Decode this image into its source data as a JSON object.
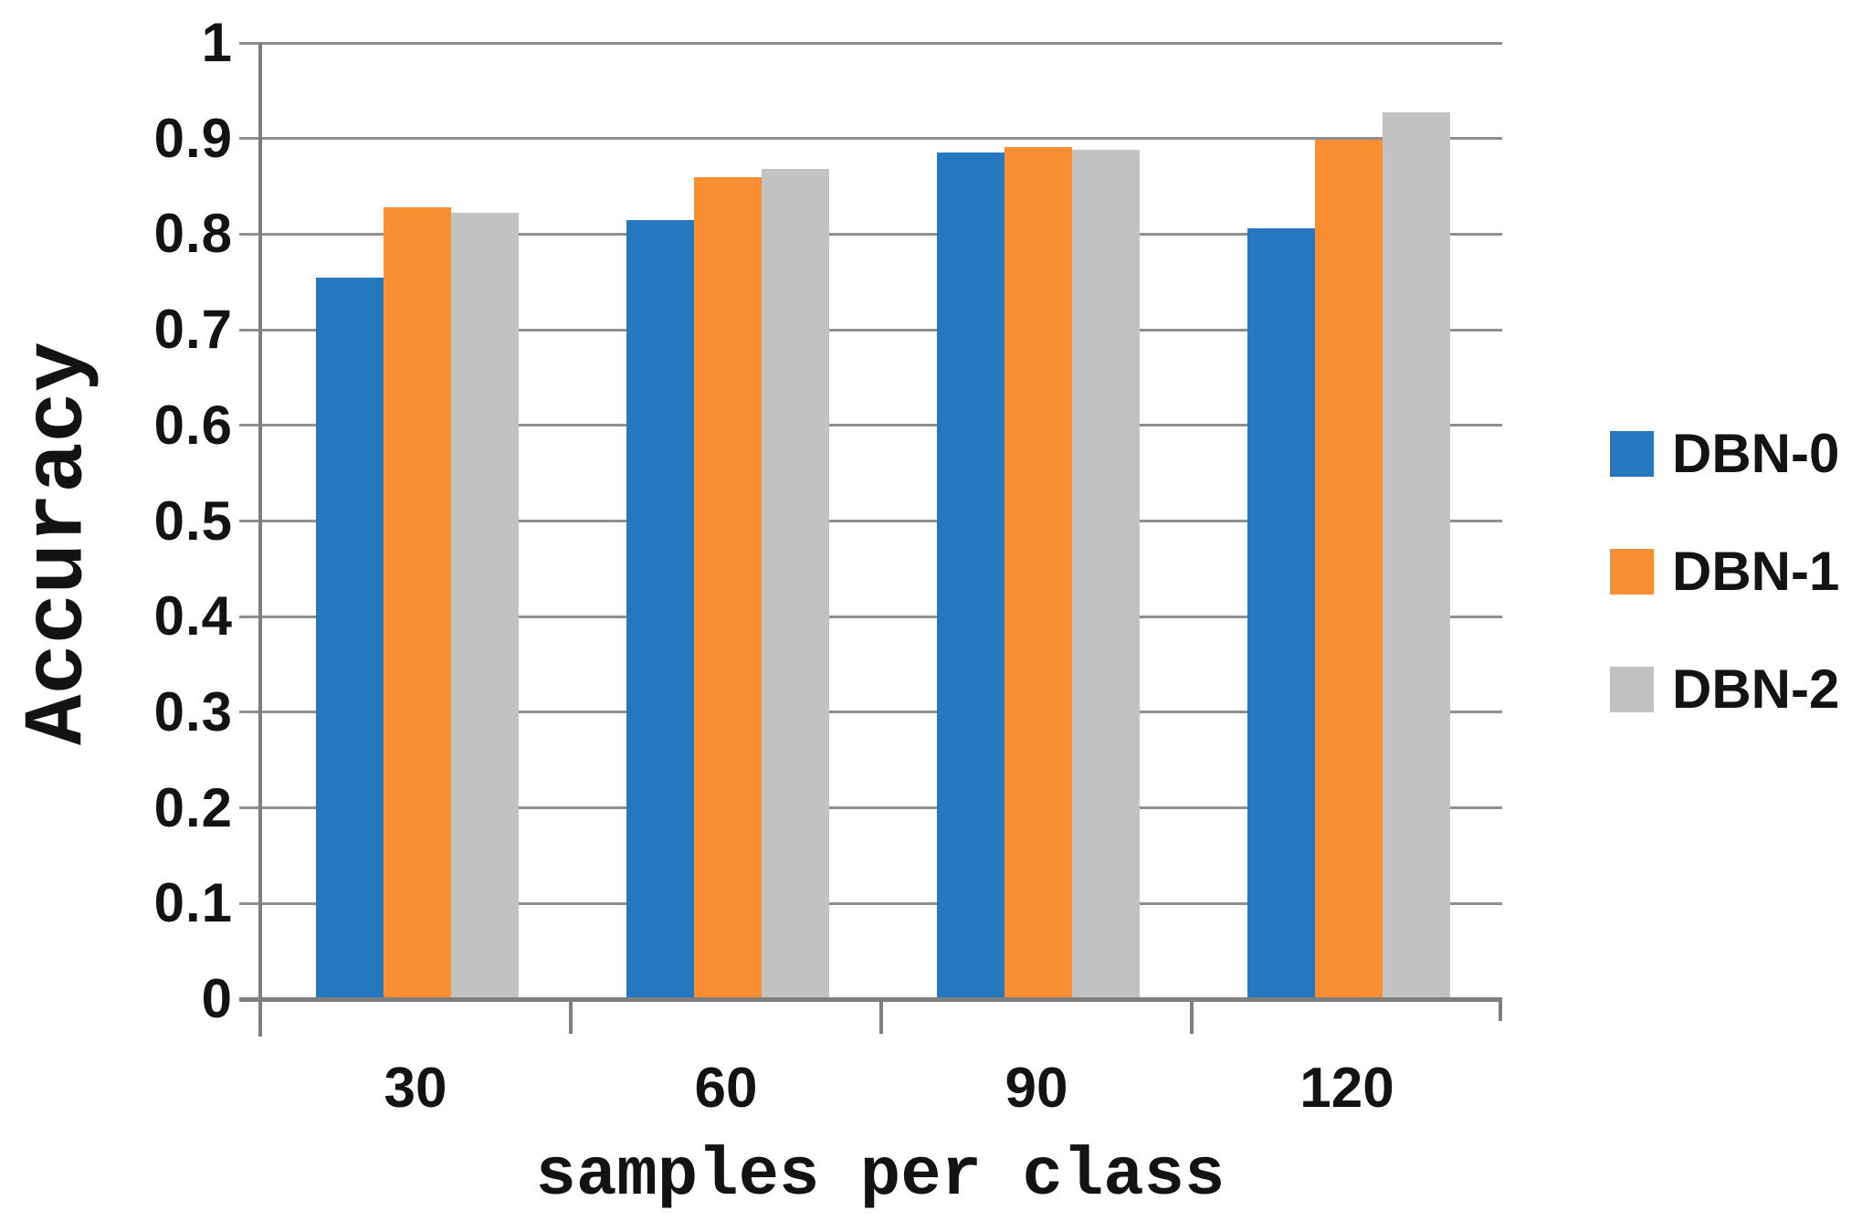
{
  "chart_data": {
    "type": "bar",
    "title": "",
    "xlabel": "samples per class",
    "ylabel": "Accuracy",
    "categories": [
      "30",
      "60",
      "90",
      "120"
    ],
    "series": [
      {
        "name": "DBN-0",
        "color": "#2678BE",
        "values": [
          0.755,
          0.815,
          0.885,
          0.806
        ]
      },
      {
        "name": "DBN-1",
        "color": "#FA8E33",
        "values": [
          0.828,
          0.86,
          0.891,
          0.899
        ]
      },
      {
        "name": "DBN-2",
        "color": "#C2C2C2",
        "values": [
          0.822,
          0.868,
          0.888,
          0.927
        ]
      }
    ],
    "ylim": [
      0,
      1
    ],
    "ytick_step": 0.1,
    "ytick_labels": [
      "0",
      "0.1",
      "0.2",
      "0.3",
      "0.4",
      "0.5",
      "0.6",
      "0.7",
      "0.8",
      "0.9",
      "1"
    ],
    "grid": "horizontal",
    "legend_position": "right"
  },
  "colors": {
    "gridline": "#8f8f8f",
    "axis": "#7f7f7f",
    "text": "#131313",
    "background": "#ffffff"
  }
}
